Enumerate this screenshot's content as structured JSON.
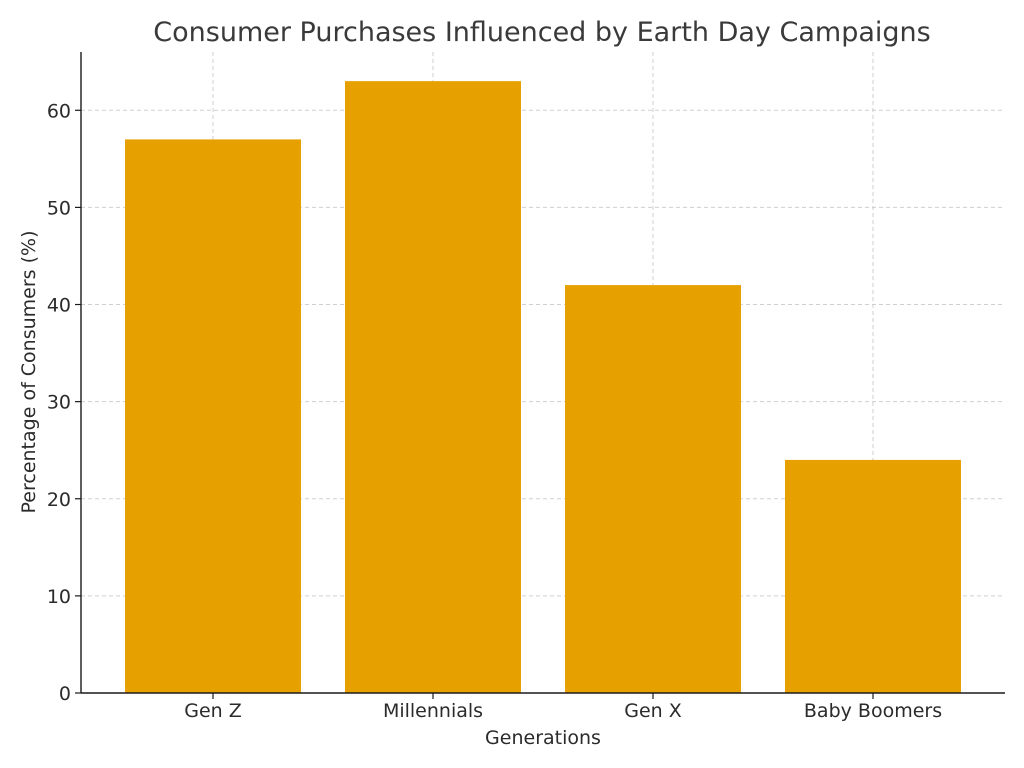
{
  "chart_data": {
    "type": "bar",
    "title": "Consumer Purchases Influenced by Earth Day Campaigns",
    "xlabel": "Generations",
    "ylabel": "Percentage of Consumers (%)",
    "categories": [
      "Gen Z",
      "Millennials",
      "Gen X",
      "Baby Boomers"
    ],
    "values": [
      57,
      63,
      42,
      24
    ],
    "ylim": [
      0,
      66
    ],
    "yticks": [
      0,
      10,
      20,
      30,
      40,
      50,
      60
    ],
    "grid": true,
    "bar_color": "#e6a000"
  }
}
